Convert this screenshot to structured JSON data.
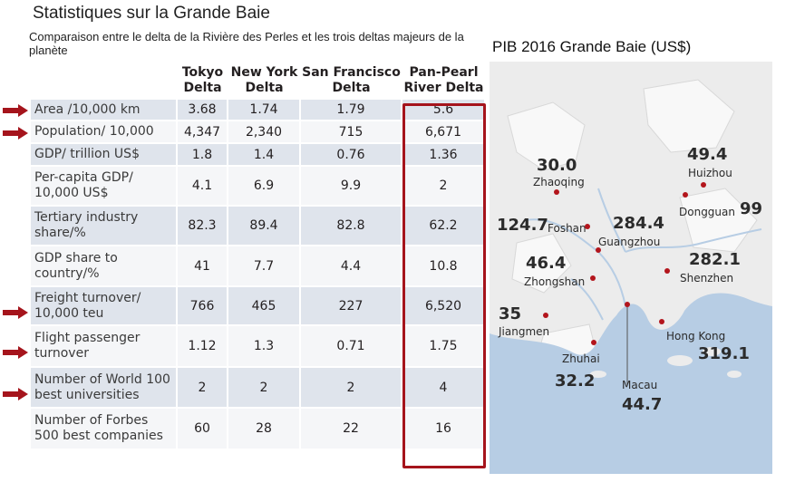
{
  "header": {
    "title": "Statistiques sur la Grande Baie",
    "subtitle": "Comparaison entre le delta de la Rivière des Perles et les trois deltas majeurs de la planète",
    "map_title": "PIB 2016 Grande Baie (US$)"
  },
  "colors": {
    "highlight": "#a5141c",
    "arrow": "#a5141c",
    "row_shade": "#dfe4ec",
    "sea": "#b7cde4",
    "land": "#ececec",
    "dot": "#b3151c"
  },
  "chart_data": [
    {
      "type": "table",
      "columns": [
        "Tokyo\nDelta",
        "New York\nDelta",
        "San Francisco\nDelta",
        "Pan-Pearl\nRiver Delta"
      ],
      "rows": [
        {
          "label": "Area /10,000 km",
          "values": [
            "3.68",
            "1.74",
            "1.79",
            "5.6"
          ],
          "arrow": true
        },
        {
          "label": "Population/ 10,000",
          "values": [
            "4,347",
            "2,340",
            "715",
            "6,671"
          ],
          "arrow": true
        },
        {
          "label": "GDP/ trillion US$",
          "values": [
            "1.8",
            "1.4",
            "0.76",
            "1.36"
          ],
          "arrow": false
        },
        {
          "label": "Per-capita GDP/\n10,000 US$",
          "values": [
            "4.1",
            "6.9",
            "9.9",
            "2"
          ],
          "arrow": false
        },
        {
          "label": "Tertiary industry\nshare/%",
          "values": [
            "82.3",
            "89.4",
            "82.8",
            "62.2"
          ],
          "arrow": false
        },
        {
          "label": "GDP share to\ncountry/%",
          "values": [
            "41",
            "7.7",
            "4.4",
            "10.8"
          ],
          "arrow": false
        },
        {
          "label": "Freight turnover/\n10,000 teu",
          "values": [
            "766",
            "465",
            "227",
            "6,520"
          ],
          "arrow": true
        },
        {
          "label": "Flight passenger\nturnover",
          "values": [
            "1.12",
            "1.3",
            "0.71",
            "1.75"
          ],
          "arrow": true
        },
        {
          "label": "Number of World 100\nbest universities",
          "values": [
            "2",
            "2",
            "2",
            "4"
          ],
          "arrow": true
        },
        {
          "label": "Number of Forbes\n500 best companies",
          "values": [
            "60",
            "28",
            "22",
            "16"
          ],
          "arrow": false
        }
      ],
      "highlight_column": "Pan-Pearl\nRiver Delta"
    },
    {
      "type": "map",
      "title": "PIB 2016 Grande Baie (US$)",
      "cities": [
        {
          "name": "Zhaoqing",
          "value": "30.0"
        },
        {
          "name": "Huizhou",
          "value": "49.4"
        },
        {
          "name": "Dongguan",
          "value": "99"
        },
        {
          "name": "Foshan",
          "value": "124.7"
        },
        {
          "name": "Guangzhou",
          "value": "284.4"
        },
        {
          "name": "Zhongshan",
          "value": "46.4"
        },
        {
          "name": "Shenzhen",
          "value": "282.1"
        },
        {
          "name": "Jiangmen",
          "value": "35"
        },
        {
          "name": "Hong Kong",
          "value": "319.1"
        },
        {
          "name": "Zhuhai",
          "value": "32.2"
        },
        {
          "name": "Macau",
          "value": "44.7"
        }
      ]
    }
  ]
}
